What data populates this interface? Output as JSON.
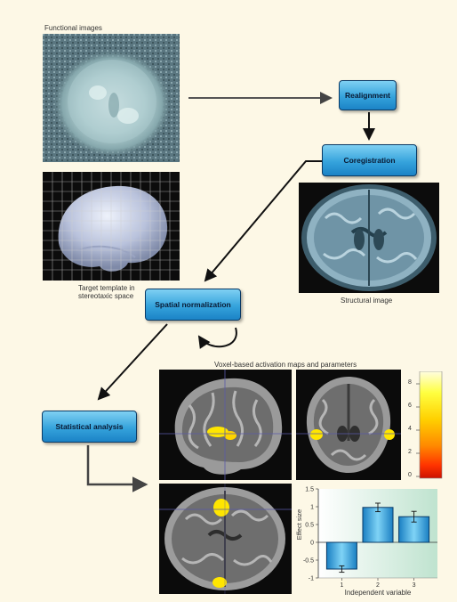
{
  "labels": {
    "functional_images": "Functional images",
    "target_template_line1": "Target template in",
    "target_template_line2": "stereotaxic space",
    "structural_image": "Structural image",
    "voxel_maps": "Voxel-based activation maps and parameters"
  },
  "nodes": {
    "realignment": "Realignment",
    "coregistration": "Coregistration",
    "spatial_normalization": "Spatial normalization",
    "statistical_analysis": "Statistical analysis"
  },
  "colorbar": {
    "ticks": [
      "8",
      "6",
      "4",
      "2",
      "0"
    ],
    "colors": [
      "#fffde0",
      "#ffff40",
      "#ffd000",
      "#ff8800",
      "#ff3300",
      "#cc1100"
    ]
  },
  "colors": {
    "node_fill": "#35a3dc",
    "node_border": "#0a3a66",
    "arrow": "#111111",
    "activation": "#ffe600",
    "background": "#fdf8e6"
  },
  "chart_data": {
    "type": "bar",
    "categories": [
      "1",
      "2",
      "3"
    ],
    "values": [
      -0.75,
      0.98,
      0.72
    ],
    "errors": [
      0.09,
      0.12,
      0.15
    ],
    "xlabel": "Independent variable",
    "ylabel": "Effect size",
    "ylim": [
      -1,
      1.5
    ],
    "yticks": [
      "1.5",
      "1",
      "0.5",
      "0",
      "-0.5",
      "-1"
    ],
    "ytick_values": [
      1.5,
      1,
      0.5,
      0,
      -0.5,
      -1
    ],
    "grid": false
  }
}
